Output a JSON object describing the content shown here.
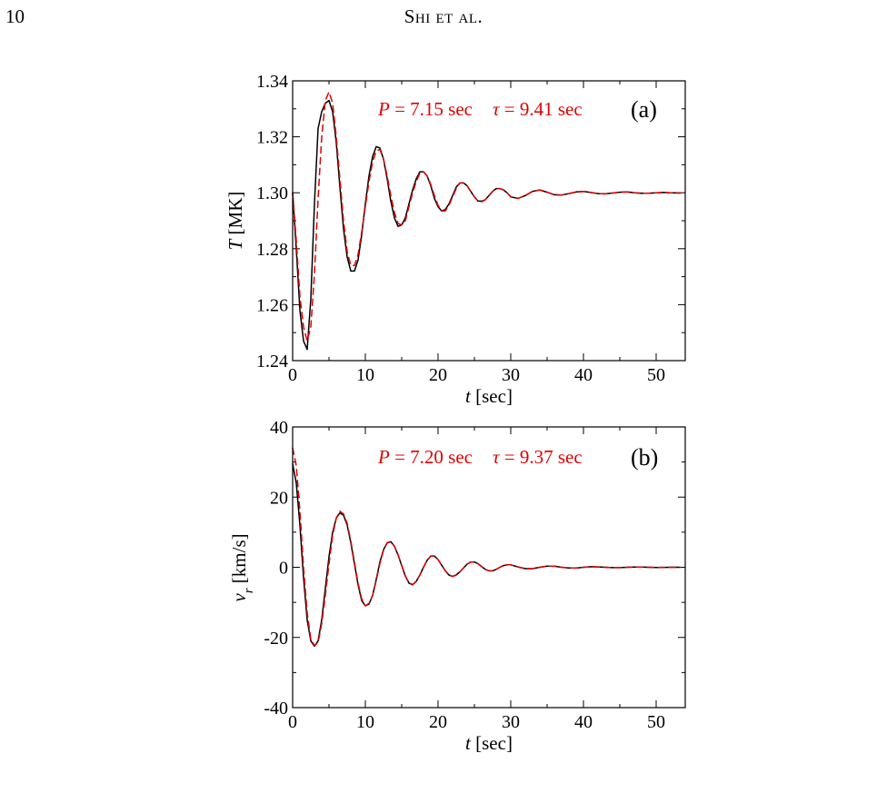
{
  "header": {
    "page_number": "10",
    "running_head": "Shi et al."
  },
  "colors": {
    "simulation": "#000000",
    "fit": "#e00000"
  },
  "chart_data": [
    {
      "type": "line",
      "panel_label": "(a)",
      "xlabel_var": "t",
      "xlabel_unit": " [sec]",
      "ylabel_var": "T",
      "ylabel_unit": " [MK]",
      "xlim": [
        0,
        54
      ],
      "ylim": [
        1.24,
        1.34
      ],
      "x_ticks": [
        "0",
        "10",
        "20",
        "30",
        "40",
        "50"
      ],
      "y_ticks": [
        "1.24",
        "1.26",
        "1.28",
        "1.30",
        "1.32",
        "1.34"
      ],
      "annotation": {
        "P_sym": "P",
        "P_text": " = 7.15 sec",
        "tau_sym": "τ",
        "tau_text": " =  9.41 sec"
      },
      "params": {
        "P": 7.15,
        "tau": 9.41
      },
      "series": [
        {
          "style": "solid",
          "color": "#000000",
          "x": [
            0,
            0.5,
            1,
            1.5,
            2,
            2.5,
            3,
            3.5,
            4,
            4.5,
            5,
            5.5,
            6,
            6.5,
            7,
            7.5,
            8,
            8.5,
            9,
            9.5,
            10,
            10.5,
            11,
            11.5,
            12,
            12.5,
            13,
            13.5,
            14,
            14.5,
            15,
            15.5,
            16,
            16.5,
            17,
            17.5,
            18,
            18.5,
            19,
            19.5,
            20,
            20.5,
            21,
            21.5,
            22,
            22.5,
            23,
            23.5,
            24,
            24.5,
            25,
            25.5,
            26,
            26.5,
            27,
            27.5,
            28,
            28.5,
            29,
            29.5,
            30,
            31,
            32,
            33,
            34,
            35,
            36,
            37,
            38,
            39,
            40,
            41,
            42,
            43,
            44,
            45,
            46,
            47,
            48,
            49,
            50,
            51,
            52,
            53.3
          ],
          "y": [
            1.3,
            1.28,
            1.258,
            1.247,
            1.244,
            1.262,
            1.296,
            1.323,
            1.329,
            1.332,
            1.333,
            1.329,
            1.318,
            1.302,
            1.287,
            1.277,
            1.272,
            1.272,
            1.276,
            1.285,
            1.296,
            1.306,
            1.313,
            1.3165,
            1.316,
            1.312,
            1.305,
            1.297,
            1.291,
            1.288,
            1.2885,
            1.291,
            1.296,
            1.301,
            1.305,
            1.3075,
            1.3075,
            1.306,
            1.3025,
            1.298,
            1.295,
            1.2935,
            1.294,
            1.296,
            1.299,
            1.302,
            1.3035,
            1.3035,
            1.3025,
            1.3005,
            1.2985,
            1.297,
            1.297,
            1.2975,
            1.299,
            1.3005,
            1.3015,
            1.3015,
            1.301,
            1.3,
            1.2985,
            1.298,
            1.299,
            1.3005,
            1.301,
            1.3002,
            1.2993,
            1.2992,
            1.2997,
            1.3003,
            1.3005,
            1.3001,
            1.2997,
            1.2996,
            1.2999,
            1.3002,
            1.3003,
            1.3,
            1.2998,
            1.2998,
            1.3,
            1.3001,
            1.3,
            1.2999
          ]
        },
        {
          "style": "dashed",
          "color": "#e00000",
          "x": [
            0,
            0.5,
            1,
            1.5,
            2,
            2.5,
            3,
            3.5,
            4,
            4.5,
            5,
            5.5,
            6,
            6.5,
            7,
            7.5,
            8,
            8.5,
            9,
            9.5,
            10,
            10.5,
            11,
            11.5,
            12,
            12.5,
            13,
            13.5,
            14,
            14.5,
            15,
            15.5,
            16,
            16.5,
            17,
            17.5,
            18,
            18.5,
            19,
            19.5,
            20,
            20.5,
            21,
            21.5,
            22,
            22.5,
            23,
            23.5,
            24,
            24.5,
            25,
            25.5,
            26,
            26.5,
            27,
            27.5,
            28,
            28.5,
            29,
            29.5,
            30,
            31,
            32,
            33,
            34,
            35,
            36,
            37,
            38,
            39,
            40,
            41,
            42,
            43,
            44,
            45,
            46,
            47,
            48,
            49,
            50,
            51,
            52,
            53.3
          ],
          "y": [
            1.3,
            1.283,
            1.263,
            1.252,
            1.247,
            1.252,
            1.271,
            1.298,
            1.32,
            1.333,
            1.336,
            1.332,
            1.32,
            1.305,
            1.29,
            1.279,
            1.274,
            1.274,
            1.278,
            1.286,
            1.295,
            1.304,
            1.311,
            1.315,
            1.3155,
            1.312,
            1.306,
            1.299,
            1.293,
            1.289,
            1.2885,
            1.29,
            1.295,
            1.3,
            1.304,
            1.307,
            1.3075,
            1.306,
            1.303,
            1.299,
            1.2955,
            1.2935,
            1.2935,
            1.2955,
            1.2985,
            1.3015,
            1.3035,
            1.3035,
            1.3025,
            1.3005,
            1.2985,
            1.297,
            1.2968,
            1.2975,
            1.299,
            1.3005,
            1.3015,
            1.3015,
            1.301,
            1.3,
            1.2986,
            1.298,
            1.299,
            1.3005,
            1.301,
            1.3002,
            1.2993,
            1.2992,
            1.2997,
            1.3003,
            1.3005,
            1.3001,
            1.2997,
            1.2996,
            1.2999,
            1.3002,
            1.3003,
            1.3,
            1.2998,
            1.2998,
            1.3,
            1.3001,
            1.3,
            1.2999
          ]
        }
      ]
    },
    {
      "type": "line",
      "panel_label": "(b)",
      "xlabel_var": "t",
      "xlabel_unit": " [sec]",
      "ylabel_var": "v",
      "ylabel_sub": "r",
      "ylabel_unit": " [km/s]",
      "xlim": [
        0,
        54
      ],
      "ylim": [
        -40,
        40
      ],
      "x_ticks": [
        "0",
        "10",
        "20",
        "30",
        "40",
        "50"
      ],
      "y_ticks": [
        "-40",
        "-20",
        "0",
        "20",
        "40"
      ],
      "annotation": {
        "P_sym": "P",
        "P_text": " = 7.20 sec",
        "tau_sym": "τ",
        "tau_text": " =  9.37 sec"
      },
      "params": {
        "P": 7.2,
        "tau": 9.37
      },
      "series": [
        {
          "style": "solid",
          "color": "#000000",
          "x": [
            0,
            0.5,
            1,
            1.5,
            2,
            2.5,
            3,
            3.5,
            4,
            4.5,
            5,
            5.5,
            6,
            6.5,
            7,
            7.5,
            8,
            8.5,
            9,
            9.5,
            10,
            10.5,
            11,
            11.5,
            12,
            12.5,
            13,
            13.5,
            14,
            14.5,
            15,
            15.5,
            16,
            16.5,
            17,
            17.5,
            18,
            18.5,
            19,
            19.5,
            20,
            20.5,
            21,
            21.5,
            22,
            22.5,
            23,
            23.5,
            24,
            24.5,
            25,
            25.5,
            26,
            26.5,
            27,
            27.5,
            28,
            28.5,
            29,
            29.5,
            30,
            31,
            32,
            33,
            34,
            35,
            36,
            37,
            38,
            39,
            40,
            41,
            42,
            43,
            44,
            45,
            46,
            47,
            48,
            49,
            50,
            51,
            52,
            53.3
          ],
          "y": [
            29.5,
            24,
            12,
            -3,
            -15,
            -21,
            -22.5,
            -21,
            -15,
            -6,
            3,
            10,
            14,
            15.5,
            14.8,
            12,
            7,
            1,
            -5,
            -9.5,
            -11,
            -10.5,
            -8,
            -3.5,
            1.5,
            5,
            7,
            7.3,
            6,
            3.5,
            0.5,
            -2.5,
            -4.5,
            -5,
            -4,
            -2.2,
            0,
            2,
            3.2,
            3.2,
            2.2,
            0.6,
            -1,
            -2.2,
            -2.6,
            -2.2,
            -1.3,
            -0.2,
            0.9,
            1.5,
            1.5,
            1.0,
            0.2,
            -0.6,
            -1.0,
            -1.0,
            -0.6,
            0,
            0.5,
            0.7,
            0.7,
            0.1,
            -0.4,
            -0.4,
            0,
            0.3,
            0.3,
            0,
            -0.2,
            -0.2,
            0,
            0.15,
            0.1,
            0,
            -0.1,
            -0.1,
            0,
            0.06,
            0.05,
            0,
            -0.04,
            -0.03,
            0,
            0
          ]
        },
        {
          "style": "dashed",
          "color": "#e00000",
          "x": [
            0,
            0.5,
            1,
            1.5,
            2,
            2.5,
            3,
            3.5,
            4,
            4.5,
            5,
            5.5,
            6,
            6.5,
            7,
            7.5,
            8,
            8.5,
            9,
            9.5,
            10,
            10.5,
            11,
            11.5,
            12,
            12.5,
            13,
            13.5,
            14,
            14.5,
            15,
            15.5,
            16,
            16.5,
            17,
            17.5,
            18,
            18.5,
            19,
            19.5,
            20,
            20.5,
            21,
            21.5,
            22,
            22.5,
            23,
            23.5,
            24,
            24.5,
            25,
            25.5,
            26,
            26.5,
            27,
            27.5,
            28,
            28.5,
            29,
            29.5,
            30,
            31,
            32,
            33,
            34,
            35,
            36,
            37,
            38,
            39,
            40,
            41,
            42,
            43,
            44,
            45,
            46,
            47,
            48,
            49,
            50,
            51,
            52,
            53.3
          ],
          "y": [
            34,
            29,
            16,
            0,
            -13,
            -20.5,
            -22.3,
            -21.5,
            -16,
            -8,
            1,
            9,
            14,
            16,
            15.2,
            12.5,
            7.5,
            1.5,
            -4.5,
            -9,
            -11,
            -10.3,
            -8,
            -3.8,
            1,
            4.8,
            7,
            7.2,
            6,
            3.6,
            0.6,
            -2.4,
            -4.4,
            -4.9,
            -4,
            -2.2,
            0,
            2,
            3.2,
            3.2,
            2.2,
            0.6,
            -1,
            -2.2,
            -2.6,
            -2.2,
            -1.3,
            -0.2,
            0.9,
            1.5,
            1.5,
            1.0,
            0.2,
            -0.6,
            -1.0,
            -1.0,
            -0.6,
            0,
            0.5,
            0.7,
            0.7,
            0.1,
            -0.4,
            -0.4,
            0,
            0.3,
            0.3,
            0,
            -0.2,
            -0.2,
            0,
            0.15,
            0.1,
            0,
            -0.1,
            -0.1,
            0,
            0.06,
            0.05,
            0,
            -0.04,
            -0.03,
            0,
            0
          ]
        }
      ]
    }
  ]
}
